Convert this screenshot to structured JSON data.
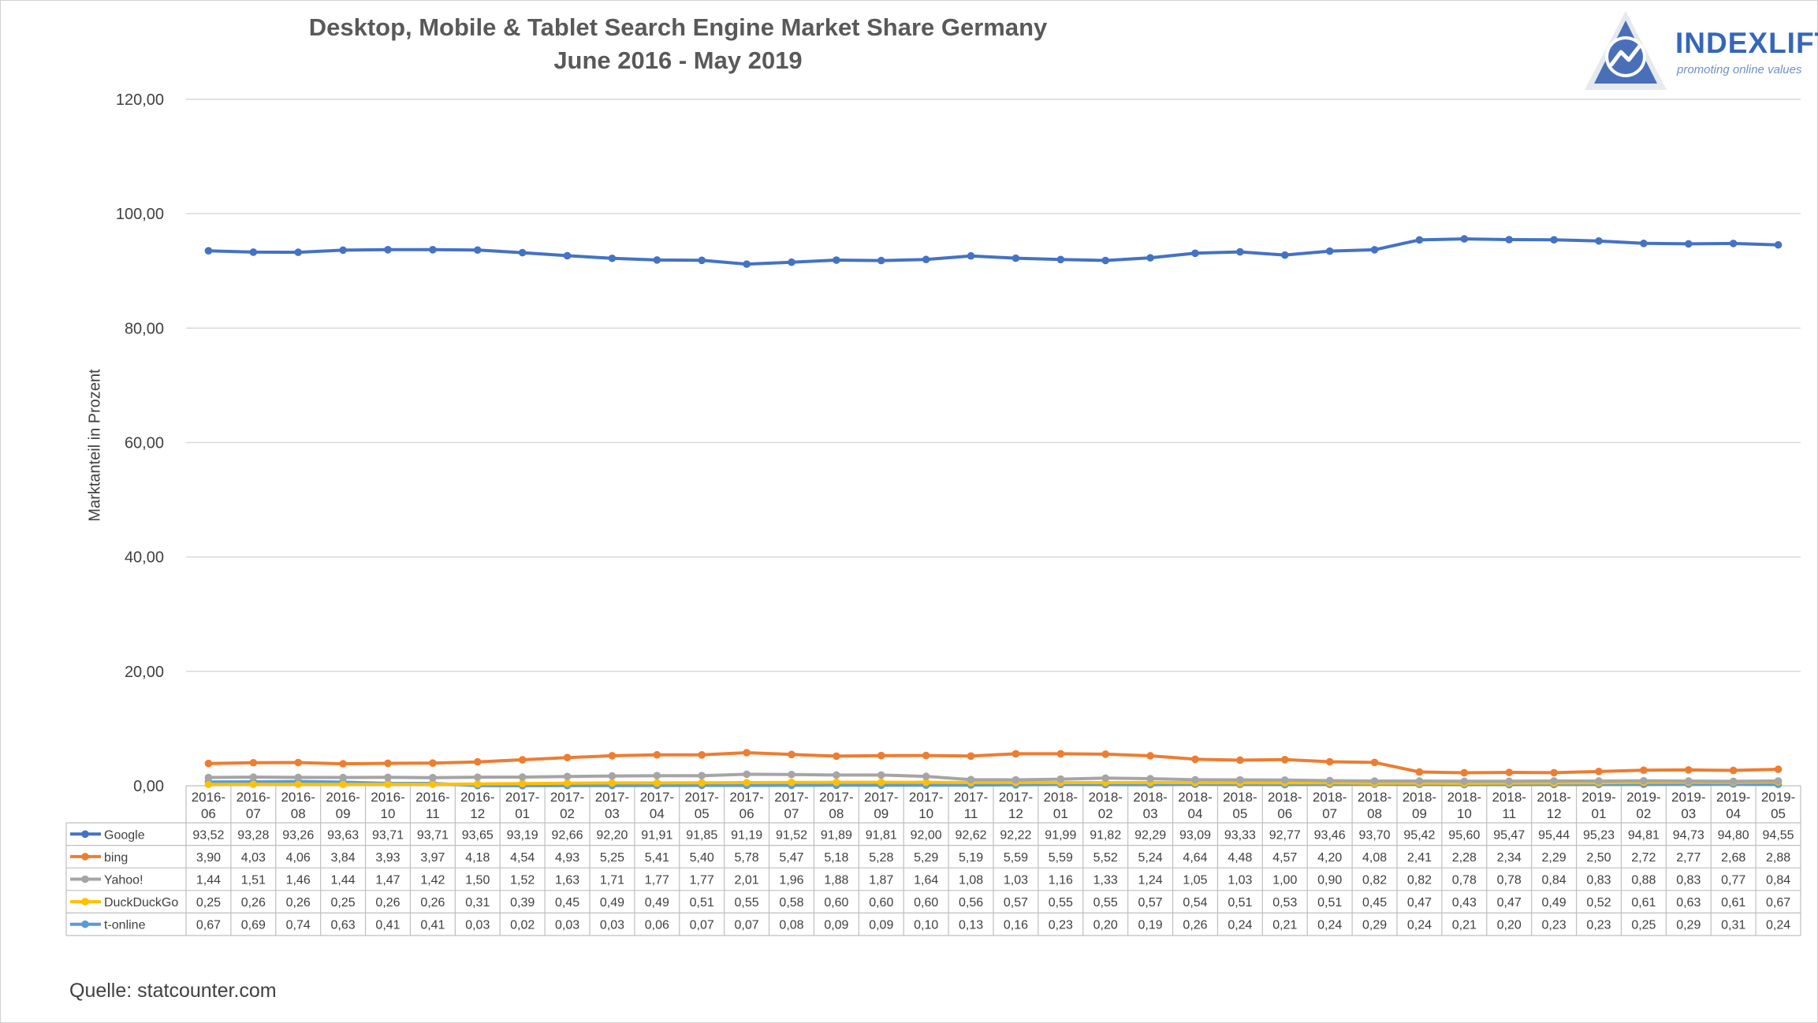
{
  "title_line1": "Desktop, Mobile & Tablet Search Engine Market Share Germany",
  "title_line2": "June 2016 - May 2019",
  "logo": {
    "name": "INDEXLIFT",
    "tagline": "promoting online values",
    "icon": "triangle-chart-logo"
  },
  "source": "Quelle: statcounter.com",
  "colors": {
    "Google": "#4472c4",
    "bing": "#ed7d31",
    "Yahoo!": "#a5a5a5",
    "DuckDuckGo": "#ffc000",
    "t-online": "#5b9bd5",
    "grid": "#d9d9d9"
  },
  "chart_data": {
    "type": "line",
    "title": "Desktop, Mobile & Tablet Search Engine Market Share Germany",
    "subtitle": "June 2016 - May 2019",
    "xlabel": "",
    "ylabel": "Marktanteil in Prozent",
    "ylim": [
      0,
      120
    ],
    "yticks": [
      "0,00",
      "20,00",
      "40,00",
      "60,00",
      "80,00",
      "100,00",
      "120,00"
    ],
    "grid": true,
    "legend": "data-table-below",
    "categories": [
      "2016-06",
      "2016-07",
      "2016-08",
      "2016-09",
      "2016-10",
      "2016-11",
      "2016-12",
      "2017-01",
      "2017-02",
      "2017-03",
      "2017-04",
      "2017-05",
      "2017-06",
      "2017-07",
      "2017-08",
      "2017-09",
      "2017-10",
      "2017-11",
      "2017-12",
      "2018-01",
      "2018-02",
      "2018-03",
      "2018-04",
      "2018-05",
      "2018-06",
      "2018-07",
      "2018-08",
      "2018-09",
      "2018-10",
      "2018-11",
      "2018-12",
      "2019-01",
      "2019-02",
      "2019-03",
      "2019-04",
      "2019-05"
    ],
    "series": [
      {
        "name": "Google",
        "labels": [
          "93,52",
          "93,28",
          "93,26",
          "93,63",
          "93,71",
          "93,71",
          "93,65",
          "93,19",
          "92,66",
          "92,20",
          "91,91",
          "91,85",
          "91,19",
          "91,52",
          "91,89",
          "91,81",
          "92,00",
          "92,62",
          "92,22",
          "91,99",
          "91,82",
          "92,29",
          "93,09",
          "93,33",
          "92,77",
          "93,46",
          "93,70",
          "95,42",
          "95,60",
          "95,47",
          "95,44",
          "95,23",
          "94,81",
          "94,73",
          "94,80",
          "94,55"
        ]
      },
      {
        "name": "bing",
        "labels": [
          "3,90",
          "4,03",
          "4,06",
          "3,84",
          "3,93",
          "3,97",
          "4,18",
          "4,54",
          "4,93",
          "5,25",
          "5,41",
          "5,40",
          "5,78",
          "5,47",
          "5,18",
          "5,28",
          "5,29",
          "5,19",
          "5,59",
          "5,59",
          "5,52",
          "5,24",
          "4,64",
          "4,48",
          "4,57",
          "4,20",
          "4,08",
          "2,41",
          "2,28",
          "2,34",
          "2,29",
          "2,50",
          "2,72",
          "2,77",
          "2,68",
          "2,88"
        ]
      },
      {
        "name": "Yahoo!",
        "labels": [
          "1,44",
          "1,51",
          "1,46",
          "1,44",
          "1,47",
          "1,42",
          "1,50",
          "1,52",
          "1,63",
          "1,71",
          "1,77",
          "1,77",
          "2,01",
          "1,96",
          "1,88",
          "1,87",
          "1,64",
          "1,08",
          "1,03",
          "1,16",
          "1,33",
          "1,24",
          "1,05",
          "1,03",
          "1,00",
          "0,90",
          "0,82",
          "0,82",
          "0,78",
          "0,78",
          "0,84",
          "0,83",
          "0,88",
          "0,83",
          "0,77",
          "0,84"
        ]
      },
      {
        "name": "DuckDuckGo",
        "labels": [
          "0,25",
          "0,26",
          "0,26",
          "0,25",
          "0,26",
          "0,26",
          "0,31",
          "0,39",
          "0,45",
          "0,49",
          "0,49",
          "0,51",
          "0,55",
          "0,58",
          "0,60",
          "0,60",
          "0,60",
          "0,56",
          "0,57",
          "0,55",
          "0,55",
          "0,57",
          "0,54",
          "0,51",
          "0,53",
          "0,51",
          "0,45",
          "0,47",
          "0,43",
          "0,47",
          "0,49",
          "0,52",
          "0,61",
          "0,63",
          "0,61",
          "0,67"
        ]
      },
      {
        "name": "t-online",
        "labels": [
          "0,67",
          "0,69",
          "0,74",
          "0,63",
          "0,41",
          "0,41",
          "0,03",
          "0,02",
          "0,03",
          "0,03",
          "0,06",
          "0,07",
          "0,07",
          "0,08",
          "0,09",
          "0,09",
          "0,10",
          "0,13",
          "0,16",
          "0,23",
          "0,20",
          "0,19",
          "0,26",
          "0,24",
          "0,21",
          "0,24",
          "0,29",
          "0,24",
          "0,21",
          "0,20",
          "0,23",
          "0,23",
          "0,25",
          "0,29",
          "0,31",
          "0,24"
        ]
      }
    ]
  }
}
